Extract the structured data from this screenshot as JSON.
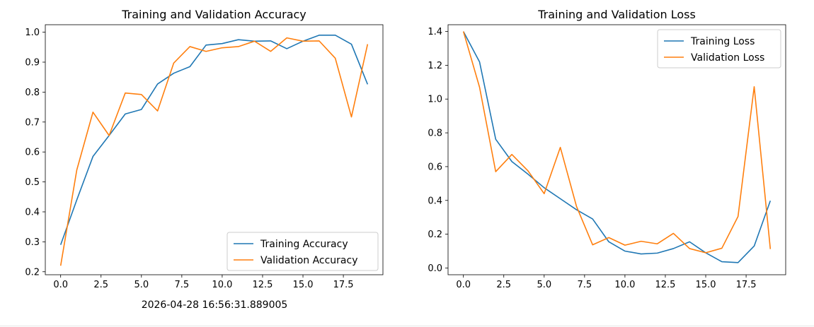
{
  "timestamp": "2026-04-28 16:56:31.889005",
  "colors": {
    "series1": "#1f77b4",
    "series2": "#ff7f0e"
  },
  "chart_data": [
    {
      "type": "line",
      "title": "Training and Validation Accuracy",
      "xlabel": "",
      "ylabel": "",
      "xlim": [
        -0.95,
        19.95
      ],
      "ylim": [
        0.19,
        1.025
      ],
      "xticks": [
        0,
        2.5,
        5,
        7.5,
        10,
        12.5,
        15,
        17.5
      ],
      "xtick_labels": [
        "0.0",
        "2.5",
        "5.0",
        "7.5",
        "10.0",
        "12.5",
        "15.0",
        "17.5"
      ],
      "yticks": [
        0.2,
        0.3,
        0.4,
        0.5,
        0.6,
        0.7,
        0.8,
        0.9,
        1.0
      ],
      "ytick_labels": [
        "0.2",
        "0.3",
        "0.4",
        "0.5",
        "0.6",
        "0.7",
        "0.8",
        "0.9",
        "1.0"
      ],
      "grid": false,
      "legend": "lower-right",
      "x": [
        0,
        1,
        2,
        3,
        4,
        5,
        6,
        7,
        8,
        9,
        10,
        11,
        12,
        13,
        14,
        15,
        16,
        17,
        18,
        19
      ],
      "series": [
        {
          "name": "Training Accuracy",
          "values": [
            0.29,
            0.44,
            0.585,
            0.655,
            0.727,
            0.742,
            0.827,
            0.863,
            0.885,
            0.957,
            0.962,
            0.975,
            0.97,
            0.971,
            0.945,
            0.97,
            0.99,
            0.99,
            0.96,
            0.826
          ]
        },
        {
          "name": "Validation Accuracy",
          "values": [
            0.22,
            0.54,
            0.733,
            0.655,
            0.797,
            0.792,
            0.737,
            0.897,
            0.952,
            0.936,
            0.948,
            0.952,
            0.97,
            0.936,
            0.981,
            0.97,
            0.971,
            0.913,
            0.717,
            0.96
          ]
        }
      ]
    },
    {
      "type": "line",
      "title": "Training and Validation Loss",
      "xlabel": "",
      "ylabel": "",
      "xlim": [
        -0.95,
        19.95
      ],
      "ylim": [
        -0.04,
        1.44
      ],
      "xticks": [
        0,
        2.5,
        5,
        7.5,
        10,
        12.5,
        15,
        17.5
      ],
      "xtick_labels": [
        "0.0",
        "2.5",
        "5.0",
        "7.5",
        "10.0",
        "12.5",
        "15.0",
        "17.5"
      ],
      "yticks": [
        0.0,
        0.2,
        0.4,
        0.6,
        0.8,
        1.0,
        1.2,
        1.4
      ],
      "ytick_labels": [
        "0.0",
        "0.2",
        "0.4",
        "0.6",
        "0.8",
        "1.0",
        "1.2",
        "1.4"
      ],
      "grid": false,
      "legend": "upper-right",
      "x": [
        0,
        1,
        2,
        3,
        4,
        5,
        6,
        7,
        8,
        9,
        10,
        11,
        12,
        13,
        14,
        15,
        16,
        17,
        18,
        19
      ],
      "series": [
        {
          "name": "Training Loss",
          "values": [
            1.4,
            1.22,
            0.762,
            0.63,
            0.555,
            0.475,
            0.41,
            0.345,
            0.29,
            0.155,
            0.1,
            0.083,
            0.088,
            0.115,
            0.155,
            0.09,
            0.037,
            0.032,
            0.13,
            0.398
          ]
        },
        {
          "name": "Validation Loss",
          "values": [
            1.4,
            1.07,
            0.57,
            0.672,
            0.575,
            0.44,
            0.714,
            0.365,
            0.137,
            0.18,
            0.135,
            0.158,
            0.143,
            0.205,
            0.115,
            0.09,
            0.117,
            0.305,
            1.073,
            0.112
          ]
        }
      ]
    }
  ]
}
